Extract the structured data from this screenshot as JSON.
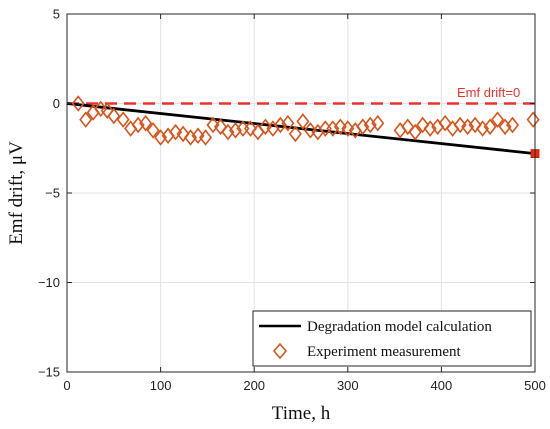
{
  "chart_data": {
    "type": "line",
    "xlabel": "Time, h",
    "ylabel": "Emf drift, μV",
    "xlim": [
      0,
      500
    ],
    "ylim": [
      -15,
      5
    ],
    "x_ticks": [
      0,
      100,
      200,
      300,
      400,
      500
    ],
    "y_ticks": [
      5,
      0,
      -5,
      -10,
      -15
    ],
    "x_tick_labels": [
      "0",
      "100",
      "200",
      "300",
      "400",
      "500"
    ],
    "y_tick_labels": [
      "5",
      "0",
      "−5",
      "−10",
      "−15"
    ],
    "grid": true,
    "legend_position": "bottom-right",
    "annotation": {
      "text": "Emf drift=0",
      "color": "#e8322e"
    },
    "series": [
      {
        "name": "Degradation model calculation",
        "type": "line",
        "color": "#000000",
        "x": [
          0,
          500
        ],
        "y": [
          0,
          -2.8
        ]
      },
      {
        "name": "Experiment measurement",
        "type": "scatter",
        "marker": "diamond",
        "color": "#d95319",
        "x": [
          12,
          20,
          28,
          36,
          43,
          50,
          60,
          68,
          76,
          84,
          92,
          100,
          108,
          116,
          124,
          132,
          140,
          148,
          156,
          164,
          172,
          180,
          188,
          196,
          204,
          212,
          220,
          228,
          236,
          244,
          252,
          260,
          268,
          276,
          284,
          292,
          300,
          308,
          316,
          324,
          332,
          356,
          364,
          372,
          380,
          388,
          396,
          404,
          412,
          420,
          428,
          436,
          444,
          452,
          460,
          468,
          476,
          498
        ],
        "y": [
          0.0,
          -0.9,
          -0.5,
          -0.3,
          -0.4,
          -0.7,
          -0.9,
          -1.4,
          -1.2,
          -1.1,
          -1.5,
          -1.9,
          -1.8,
          -1.6,
          -1.7,
          -1.9,
          -1.8,
          -1.9,
          -1.2,
          -1.3,
          -1.6,
          -1.5,
          -1.4,
          -1.4,
          -1.6,
          -1.3,
          -1.4,
          -1.2,
          -1.1,
          -1.7,
          -1.0,
          -1.5,
          -1.6,
          -1.4,
          -1.4,
          -1.3,
          -1.4,
          -1.5,
          -1.3,
          -1.2,
          -1.1,
          -1.5,
          -1.3,
          -1.6,
          -1.2,
          -1.4,
          -1.3,
          -1.1,
          -1.4,
          -1.2,
          -1.3,
          -1.2,
          -1.4,
          -1.3,
          -0.9,
          -1.3,
          -1.2,
          -0.9
        ]
      },
      {
        "name": "Emf drift=0",
        "type": "dashed-line",
        "color": "#e8322e",
        "x": [
          0,
          500
        ],
        "y": [
          0,
          0
        ]
      }
    ],
    "endpoint_marker": {
      "x": 500,
      "y": -2.8,
      "color": "#f0280e"
    }
  }
}
